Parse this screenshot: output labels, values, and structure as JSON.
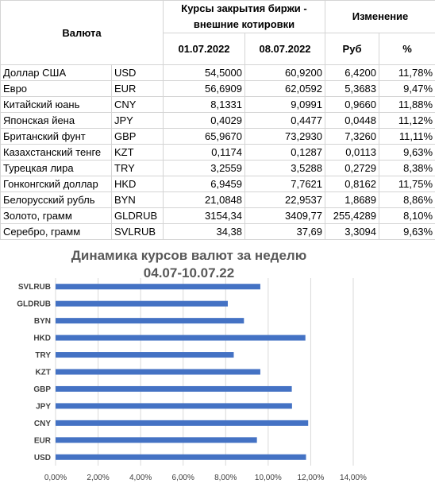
{
  "table": {
    "header": {
      "currency": "Валюта",
      "rates_group": "Курсы закрытия биржи - внешние котировки",
      "date1": "01.07.2022",
      "date2": "08.07.2022",
      "change_group": "Изменение",
      "rub": "Руб",
      "pct": "%"
    },
    "rows": [
      {
        "name": "Доллар США",
        "code": "USD",
        "v1": "54,5000",
        "v2": "60,9200",
        "rub": "6,4200",
        "pct": "11,78%"
      },
      {
        "name": "Евро",
        "code": "EUR",
        "v1": "56,6909",
        "v2": "62,0592",
        "rub": "5,3683",
        "pct": "9,47%"
      },
      {
        "name": "Китайский юань",
        "code": "CNY",
        "v1": "8,1331",
        "v2": "9,0991",
        "rub": "0,9660",
        "pct": "11,88%"
      },
      {
        "name": "Японская йена",
        "code": "JPY",
        "v1": "0,4029",
        "v2": "0,4477",
        "rub": "0,0448",
        "pct": "11,12%"
      },
      {
        "name": "Британский фунт",
        "code": "GBP",
        "v1": "65,9670",
        "v2": "73,2930",
        "rub": "7,3260",
        "pct": "11,11%"
      },
      {
        "name": "Казахстанский тенге",
        "code": "KZT",
        "v1": "0,1174",
        "v2": "0,1287",
        "rub": "0,0113",
        "pct": "9,63%"
      },
      {
        "name": "Турецкая лира",
        "code": "TRY",
        "v1": "3,2559",
        "v2": "3,5288",
        "rub": "0,2729",
        "pct": "8,38%"
      },
      {
        "name": "Гонконгский доллар",
        "code": "HKD",
        "v1": "6,9459",
        "v2": "7,7621",
        "rub": "0,8162",
        "pct": "11,75%"
      },
      {
        "name": "Белорусский рубль",
        "code": "BYN",
        "v1": "21,0848",
        "v2": "22,9537",
        "rub": "1,8689",
        "pct": "8,86%"
      },
      {
        "name": "Золото, грамм",
        "code": "GLDRUB",
        "v1": "3154,34",
        "v2": "3409,77",
        "rub": "255,4289",
        "pct": "8,10%"
      },
      {
        "name": "Серебро, грамм",
        "code": "SVLRUB",
        "v1": "34,38",
        "v2": "37,69",
        "rub": "3,3094",
        "pct": "9,63%"
      }
    ]
  },
  "chart_data": {
    "type": "bar",
    "orientation": "horizontal",
    "title": "Динамика курсов валют за неделю",
    "subtitle": "04.07-10.07.22",
    "xlabel": "",
    "ylabel": "",
    "categories": [
      "USD",
      "EUR",
      "CNY",
      "JPY",
      "GBP",
      "KZT",
      "TRY",
      "HKD",
      "BYN",
      "GLDRUB",
      "SVLRUB"
    ],
    "values": [
      11.78,
      9.47,
      11.88,
      11.12,
      11.11,
      9.63,
      8.38,
      11.75,
      8.86,
      8.1,
      9.63
    ],
    "xlim": [
      0,
      14
    ],
    "x_ticks": [
      0,
      2,
      4,
      6,
      8,
      10,
      12,
      14
    ],
    "x_tick_labels": [
      "0,00%",
      "2,00%",
      "4,00%",
      "6,00%",
      "8,00%",
      "10,00%",
      "12,00%",
      "14,00%"
    ],
    "grid": true,
    "legend": "none",
    "bar_color": "#4472C4",
    "grid_color": "#d9d9d9"
  }
}
